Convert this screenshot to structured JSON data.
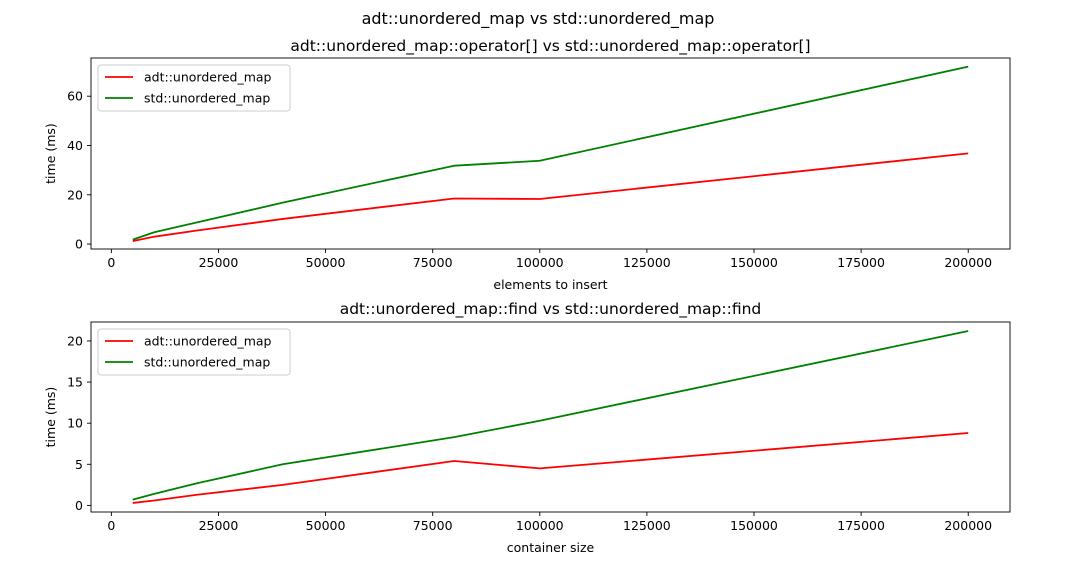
{
  "suptitle": "adt::unordered_map vs std::unordered_map",
  "chart_data": [
    {
      "type": "line",
      "title": "adt::unordered_map::operator[] vs std::unordered_map::operator[]",
      "xlabel": "elements to insert",
      "ylabel": "time (ms)",
      "xlim": [
        -4750,
        209750
      ],
      "ylim": [
        -2.0,
        75.5
      ],
      "xticks": [
        0,
        25000,
        50000,
        75000,
        100000,
        125000,
        150000,
        175000,
        200000
      ],
      "yticks": [
        0,
        20,
        40,
        60
      ],
      "legend_position": "upper-left",
      "grid": false,
      "series": [
        {
          "name": "adt::unordered_map",
          "color": "#ff0000",
          "x": [
            5000,
            10000,
            20000,
            40000,
            80000,
            100000,
            200000
          ],
          "y": [
            1.2,
            3.0,
            5.5,
            10.2,
            18.5,
            18.3,
            36.8
          ]
        },
        {
          "name": "std::unordered_map",
          "color": "#008000",
          "x": [
            5000,
            10000,
            20000,
            40000,
            80000,
            100000,
            200000
          ],
          "y": [
            1.8,
            4.8,
            8.8,
            16.8,
            31.8,
            33.8,
            72.0
          ]
        }
      ]
    },
    {
      "type": "line",
      "title": "adt::unordered_map::find vs std::unordered_map::find",
      "xlabel": "container size",
      "ylabel": "time (ms)",
      "xlim": [
        -4750,
        209750
      ],
      "ylim": [
        -0.8,
        22.3
      ],
      "xticks": [
        0,
        25000,
        50000,
        75000,
        100000,
        125000,
        150000,
        175000,
        200000
      ],
      "yticks": [
        0,
        5,
        10,
        15,
        20
      ],
      "legend_position": "upper-left",
      "grid": false,
      "series": [
        {
          "name": "adt::unordered_map",
          "color": "#ff0000",
          "x": [
            5000,
            10000,
            20000,
            40000,
            80000,
            100000,
            200000
          ],
          "y": [
            0.3,
            0.6,
            1.3,
            2.5,
            5.4,
            4.5,
            8.8
          ]
        },
        {
          "name": "std::unordered_map",
          "color": "#008000",
          "x": [
            5000,
            10000,
            20000,
            40000,
            80000,
            100000,
            200000
          ],
          "y": [
            0.7,
            1.4,
            2.7,
            5.0,
            8.3,
            10.3,
            21.2
          ]
        }
      ]
    }
  ]
}
